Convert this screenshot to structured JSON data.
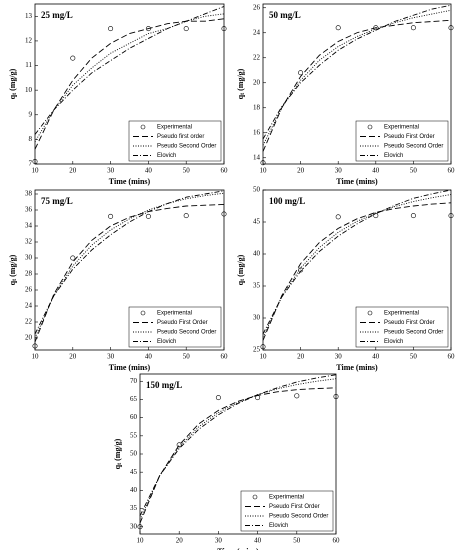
{
  "chart_data": [
    {
      "type": "line",
      "title": "25 mg/L",
      "xlabel": "Time (mins)",
      "ylabel": "q",
      "ylabel_subscript": "t",
      "ylabel_unit": "(mg/g)",
      "legend": "lower right",
      "x": [
        10,
        15,
        20,
        25,
        30,
        35,
        40,
        45,
        50,
        55,
        60
      ],
      "xlim": [
        10,
        60
      ],
      "xticks": [
        10,
        20,
        30,
        40,
        50,
        60
      ],
      "ylim": [
        7,
        13.5
      ],
      "yticks": [
        7,
        8,
        9,
        10,
        11,
        12,
        13
      ],
      "series": [
        {
          "name": "Experimental",
          "color": "#000000",
          "style": "marker",
          "values": [
            7.1,
            null,
            11.3,
            null,
            12.5,
            null,
            12.5,
            null,
            12.5,
            null,
            12.5
          ]
        },
        {
          "name": "Pseudo first order",
          "color": "#000000",
          "style": "dashed",
          "values": [
            7.6,
            9.2,
            10.4,
            11.3,
            11.9,
            12.3,
            12.5,
            12.7,
            12.8,
            12.8,
            12.9
          ]
        },
        {
          "name": "Pseudo Second Order",
          "color": "#000000",
          "style": "dotted",
          "values": [
            7.9,
            9.2,
            10.2,
            10.9,
            11.5,
            11.9,
            12.3,
            12.5,
            12.8,
            13.0,
            13.1
          ]
        },
        {
          "name": "Elovich",
          "color": "#000000",
          "style": "dash-dot",
          "values": [
            8.2,
            9.2,
            10.0,
            10.7,
            11.2,
            11.7,
            12.1,
            12.5,
            12.8,
            13.1,
            13.4
          ]
        }
      ]
    },
    {
      "type": "line",
      "title": "50 mg/L",
      "xlabel": "Time (mins)",
      "ylabel": "q",
      "ylabel_subscript": "t",
      "ylabel_unit": "(mg/g)",
      "legend": "lower right",
      "x": [
        10,
        15,
        20,
        25,
        30,
        35,
        40,
        45,
        50,
        55,
        60
      ],
      "xlim": [
        10,
        60
      ],
      "xticks": [
        10,
        20,
        30,
        40,
        50,
        60
      ],
      "ylim": [
        13.5,
        26.3
      ],
      "yticks": [
        14,
        16,
        18,
        20,
        22,
        24,
        26
      ],
      "series": [
        {
          "name": "Experimental",
          "color": "#000000",
          "style": "marker",
          "values": [
            13.6,
            null,
            20.8,
            null,
            24.4,
            null,
            24.4,
            null,
            24.4,
            null,
            24.4
          ]
        },
        {
          "name": "Pseudo First Order",
          "color": "#000000",
          "style": "dashed",
          "values": [
            14.5,
            18.0,
            20.5,
            22.2,
            23.3,
            24.0,
            24.4,
            24.6,
            24.8,
            24.9,
            25.0
          ]
        },
        {
          "name": "Pseudo Second Order",
          "color": "#000000",
          "style": "dotted",
          "values": [
            15.0,
            18.0,
            20.2,
            21.8,
            22.9,
            23.7,
            24.3,
            24.8,
            25.2,
            25.5,
            25.8
          ]
        },
        {
          "name": "Elovich",
          "color": "#000000",
          "style": "dash-dot",
          "values": [
            15.5,
            18.1,
            20.0,
            21.4,
            22.6,
            23.5,
            24.2,
            24.9,
            25.4,
            25.9,
            26.2
          ]
        }
      ]
    },
    {
      "type": "line",
      "title": "75 mg/L",
      "xlabel": "Time (mins)",
      "ylabel": "q",
      "ylabel_subscript": "t",
      "ylabel_unit": "(mg/g)",
      "legend": "lower right",
      "x": [
        10,
        15,
        20,
        25,
        30,
        35,
        40,
        45,
        50,
        55,
        60
      ],
      "xlim": [
        10,
        60
      ],
      "xticks": [
        10,
        20,
        30,
        40,
        50,
        60
      ],
      "ylim": [
        18.5,
        38.5
      ],
      "yticks": [
        20,
        22,
        24,
        26,
        28,
        30,
        32,
        34,
        36,
        38
      ],
      "series": [
        {
          "name": "Experimental",
          "color": "#000000",
          "style": "marker",
          "values": [
            19.0,
            null,
            30.0,
            null,
            35.2,
            null,
            35.2,
            null,
            35.3,
            null,
            35.5
          ]
        },
        {
          "name": "Pseudo First Order",
          "color": "#000000",
          "style": "dashed",
          "values": [
            19.5,
            25.5,
            29.5,
            32.2,
            34.0,
            35.1,
            35.8,
            36.2,
            36.5,
            36.6,
            36.7
          ]
        },
        {
          "name": "Pseudo Second Order",
          "color": "#000000",
          "style": "dotted",
          "values": [
            20.0,
            25.3,
            29.0,
            31.6,
            33.5,
            34.9,
            36.0,
            36.8,
            37.4,
            37.8,
            38.1
          ]
        },
        {
          "name": "Elovich",
          "color": "#000000",
          "style": "dash-dot",
          "values": [
            20.5,
            25.3,
            28.6,
            31.0,
            32.9,
            34.5,
            35.8,
            36.8,
            37.6,
            38.0,
            38.4
          ]
        }
      ]
    },
    {
      "type": "line",
      "title": "100 mg/L",
      "xlabel": "Time (mins)",
      "ylabel": "q",
      "ylabel_subscript": "t",
      "ylabel_unit": "(mg/g)",
      "legend": "lower right",
      "x": [
        10,
        15,
        20,
        25,
        30,
        35,
        40,
        45,
        50,
        55,
        60
      ],
      "xlim": [
        10,
        60
      ],
      "xticks": [
        10,
        20,
        30,
        40,
        50,
        60
      ],
      "ylim": [
        25,
        50
      ],
      "yticks": [
        25,
        30,
        35,
        40,
        45,
        50
      ],
      "series": [
        {
          "name": "Experimental",
          "color": "#000000",
          "style": "marker",
          "values": [
            25.5,
            null,
            37.5,
            null,
            45.8,
            null,
            46.0,
            null,
            46.0,
            null,
            46.0
          ]
        },
        {
          "name": "Pseudo First Order",
          "color": "#000000",
          "style": "dashed",
          "values": [
            26.5,
            33.5,
            38.5,
            41.8,
            44.0,
            45.5,
            46.5,
            47.1,
            47.5,
            47.8,
            48.0
          ]
        },
        {
          "name": "Pseudo Second Order",
          "color": "#000000",
          "style": "dotted",
          "values": [
            27.0,
            33.3,
            37.8,
            41.0,
            43.4,
            45.1,
            46.4,
            47.4,
            48.2,
            48.8,
            49.3
          ]
        },
        {
          "name": "Elovich",
          "color": "#000000",
          "style": "dash-dot",
          "values": [
            27.5,
            33.3,
            37.3,
            40.4,
            42.8,
            44.7,
            46.3,
            47.6,
            48.7,
            49.4,
            50.0
          ]
        }
      ]
    },
    {
      "type": "line",
      "title": "150 mg/L",
      "xlabel": "Time (mins)",
      "ylabel": "q",
      "ylabel_subscript": "t",
      "ylabel_unit": "(mg/g)",
      "legend": "lower right",
      "x": [
        10,
        15,
        20,
        25,
        30,
        35,
        40,
        45,
        50,
        55,
        60
      ],
      "xlim": [
        10,
        60
      ],
      "xticks": [
        10,
        20,
        30,
        40,
        50,
        60
      ],
      "ylim": [
        28,
        72
      ],
      "yticks": [
        30,
        35,
        40,
        45,
        50,
        55,
        60,
        65,
        70
      ],
      "series": [
        {
          "name": "Experimental",
          "color": "#000000",
          "style": "marker",
          "values": [
            30.0,
            null,
            52.5,
            null,
            65.5,
            null,
            65.5,
            null,
            66.0,
            null,
            65.8
          ]
        },
        {
          "name": "Pseudo First Order",
          "color": "#000000",
          "style": "dashed",
          "values": [
            31.0,
            44.0,
            52.5,
            58.3,
            62.0,
            64.5,
            66.1,
            67.1,
            67.7,
            68.0,
            68.2
          ]
        },
        {
          "name": "Pseudo Second Order",
          "color": "#000000",
          "style": "dotted",
          "values": [
            32.0,
            44.0,
            52.0,
            57.5,
            61.4,
            64.2,
            66.3,
            67.9,
            69.1,
            70.0,
            70.7
          ]
        },
        {
          "name": "Elovich",
          "color": "#000000",
          "style": "dash-dot",
          "values": [
            33.0,
            44.0,
            51.5,
            56.8,
            60.8,
            63.9,
            66.3,
            68.2,
            69.8,
            70.9,
            71.8
          ]
        }
      ]
    }
  ]
}
